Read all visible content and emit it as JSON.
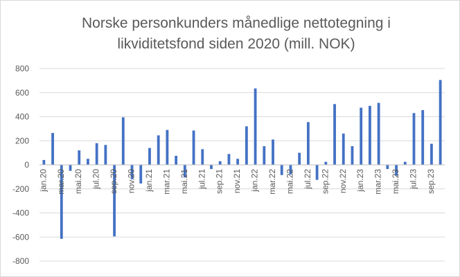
{
  "chart_data": {
    "type": "bar",
    "title": "Norske personkunders månedlige nettotegning i likviditetsfond siden 2020 (mill. NOK)",
    "categories": [
      "jan.20",
      "feb.20",
      "mar.20",
      "apr.20",
      "mai.20",
      "jun.20",
      "jul.20",
      "aug.20",
      "sep.20",
      "okt.20",
      "nov.20",
      "des.20",
      "jan.21",
      "feb.21",
      "mar.21",
      "apr.21",
      "mai.21",
      "jun.21",
      "jul.21",
      "aug.21",
      "sep.21",
      "okt.21",
      "nov.21",
      "des.21",
      "jan.22",
      "feb.22",
      "mar.22",
      "apr.22",
      "mai.22",
      "jun.22",
      "jul.22",
      "aug.22",
      "sep.22",
      "okt.22",
      "nov.22",
      "des.22",
      "jan.23",
      "feb.23",
      "mar.23",
      "apr.23",
      "mai.23",
      "jun.23",
      "jul.23",
      "aug.23",
      "sep.23",
      "okt.23"
    ],
    "series": [
      {
        "values": [
          40,
          265,
          -615,
          -50,
          120,
          50,
          180,
          165,
          -595,
          395,
          -120,
          -155,
          140,
          245,
          290,
          75,
          -105,
          285,
          130,
          -35,
          30,
          90,
          50,
          320,
          635,
          155,
          210,
          -85,
          -80,
          100,
          355,
          -125,
          25,
          505,
          260,
          155,
          475,
          490,
          515,
          -35,
          -90,
          25,
          430,
          455,
          175,
          705
        ]
      }
    ],
    "xtick_labels": [
      "jan.20",
      "mar.20",
      "mai.20",
      "jul.20",
      "sep.20",
      "nov.20",
      "jan.21",
      "mar.21",
      "mai.21",
      "jul.21",
      "sep.21",
      "nov.21",
      "jan.22",
      "mar.22",
      "mai.22",
      "jul.22",
      "sep.22",
      "nov.22",
      "jan.23",
      "mar.23",
      "mai.23",
      "jul.23",
      "sep.23"
    ],
    "yticks": [
      800,
      600,
      400,
      200,
      0,
      -200,
      -400,
      -600,
      -800
    ],
    "ylim": [
      -800,
      800
    ],
    "grid": true,
    "legend": "none",
    "bar_color": "#4472c4",
    "grid_color": "#d9d9d9",
    "axis_color": "#bfbfbf"
  }
}
